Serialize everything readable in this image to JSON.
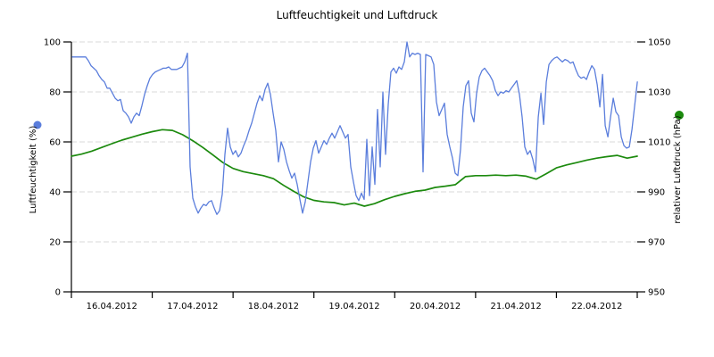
{
  "title": "Luftfeuchtigkeit und Luftdruck",
  "chart_data": {
    "type": "line",
    "title": "Luftfeuchtigkeit und Luftdruck",
    "grid": "horizontal-dashed",
    "grid_color": "#d9d9d9",
    "x_axis": {
      "labels": [
        "16.04.2012",
        "17.04.2012",
        "18.04.2012",
        "19.04.2012",
        "20.04.2012",
        "21.04.2012",
        "22.04.2012"
      ],
      "span_hours": 168
    },
    "y_left": {
      "label": "Luftfeuchtigkeit (%)",
      "min": 0,
      "max": 100,
      "ticks": [
        "0",
        "20",
        "40",
        "60",
        "80",
        "100"
      ],
      "tick_values": [
        0,
        20,
        40,
        60,
        80,
        100
      ],
      "color": "#5b7edc"
    },
    "y_right": {
      "label": "relativer Luftdruck (hPa)",
      "min": 950,
      "max": 1050,
      "ticks": [
        "950",
        "970",
        "990",
        "1010",
        "1030",
        "1050"
      ],
      "tick_values": [
        950,
        970,
        990,
        1010,
        1030,
        1050
      ],
      "color": "#1c8a0e"
    },
    "series": [
      {
        "name": "Luftfeuchtigkeit",
        "axis": "left",
        "unit": "%",
        "color": "#5b7edc",
        "t_start_hours": 0.27,
        "t_step_hours": 0.795,
        "values": [
          94,
          94,
          94,
          94,
          94,
          94,
          92.5,
          90.5,
          89.5,
          88.5,
          86.5,
          85,
          84,
          81.5,
          81.5,
          79.5,
          77.5,
          76.5,
          77,
          72.5,
          71.5,
          70,
          67.5,
          70,
          71.5,
          70.5,
          74.5,
          79,
          82.5,
          85.5,
          87,
          88,
          88.5,
          89,
          89.5,
          89.5,
          90,
          89,
          89,
          89,
          89.5,
          90,
          92,
          95.5,
          50,
          37.5,
          34,
          31.5,
          33.5,
          35,
          34.5,
          36,
          36.5,
          33.5,
          31,
          32.5,
          39,
          55,
          65.5,
          58,
          55,
          56.5,
          54,
          55.5,
          58.5,
          61,
          64.5,
          67.5,
          71.5,
          75.5,
          78.5,
          76.5,
          81,
          83.5,
          79,
          71.5,
          64.5,
          52,
          60,
          57,
          52,
          48.5,
          45.5,
          47.5,
          43,
          37,
          31.5,
          36,
          44,
          52,
          57.5,
          60.5,
          55.5,
          58,
          60.5,
          59,
          61.5,
          63.5,
          61.5,
          64,
          66.5,
          64,
          61.5,
          63,
          50,
          44,
          38.5,
          36.5,
          39.5,
          37,
          61,
          38.5,
          58,
          43,
          73,
          50,
          80,
          55,
          75,
          88,
          89.5,
          87.5,
          90,
          89,
          92,
          100,
          94,
          95.5,
          95,
          95.5,
          95,
          48,
          95,
          94.5,
          94,
          91,
          76,
          70.5,
          73,
          75.5,
          63,
          58,
          53.5,
          47.5,
          46.5,
          57,
          74,
          82.5,
          84.5,
          71.5,
          68,
          79.5,
          86,
          88.5,
          89.5,
          88,
          86.5,
          84.5,
          80.5,
          78.5,
          80,
          79.5,
          80.5,
          80,
          81.5,
          83,
          84.5,
          79,
          70,
          58,
          55,
          56.5,
          53,
          48,
          70,
          79.5,
          67,
          84,
          91,
          92.5,
          93.5,
          94,
          93,
          92,
          93,
          92.5,
          91.5,
          92,
          89,
          86.5,
          85.5,
          86,
          85,
          88,
          90.5,
          89,
          83,
          74,
          87,
          66.5,
          62,
          70,
          77.5,
          72,
          70.5,
          62,
          58.5,
          57.5,
          58,
          65,
          74.5,
          84
        ]
      },
      {
        "name": "relativer Luftdruck",
        "axis": "right",
        "unit": "hPa",
        "color": "#1c8a0e",
        "t_start_hours": 0,
        "t_step_hours": 3,
        "values": [
          1004.3,
          1005.1,
          1006.3,
          1007.8,
          1009.3,
          1010.7,
          1011.9,
          1013.1,
          1014.1,
          1014.9,
          1014.6,
          1012.9,
          1010.5,
          1007.8,
          1004.8,
          1001.7,
          999.4,
          998.1,
          997.3,
          996.5,
          995.3,
          992.6,
          990.2,
          988.0,
          986.6,
          986.0,
          985.7,
          984.8,
          985.5,
          984.3,
          985.3,
          986.9,
          988.2,
          989.3,
          990.2,
          990.7,
          991.8,
          992.3,
          992.9,
          996.1,
          996.5,
          996.5,
          996.7,
          996.5,
          996.7,
          996.3,
          995.1,
          997.3,
          999.6,
          1000.8,
          1001.7,
          1002.7,
          1003.5,
          1004.1,
          1004.6,
          1003.5,
          1004.3
        ]
      }
    ]
  }
}
